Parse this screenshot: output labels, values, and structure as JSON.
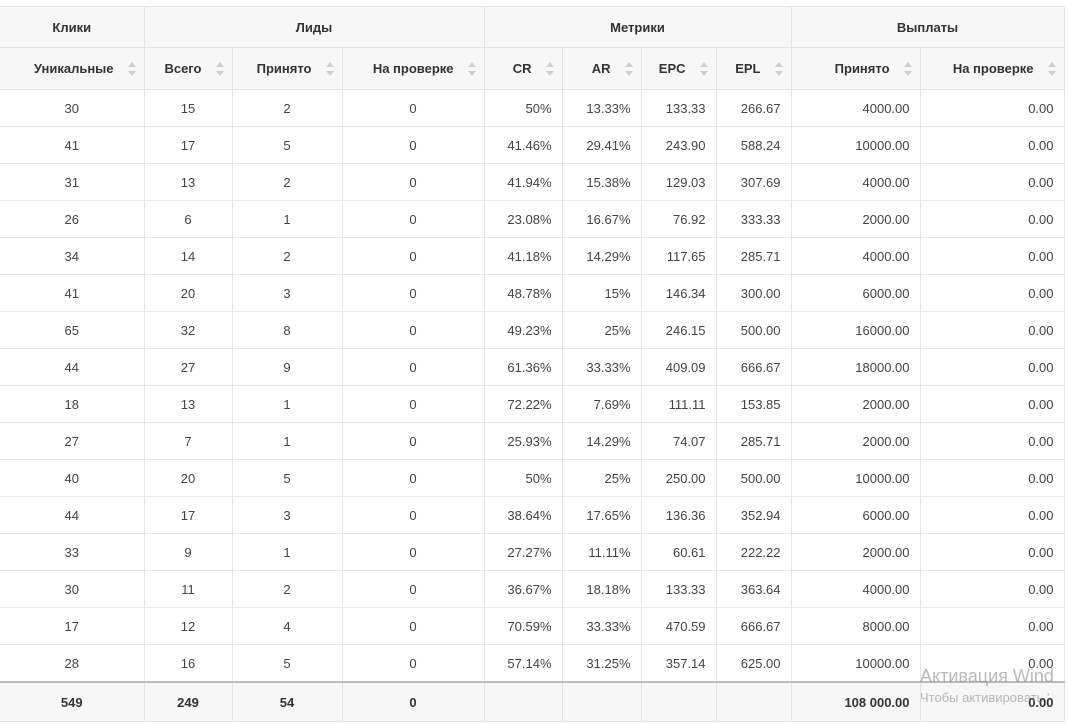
{
  "header_groups": [
    {
      "label": "Клики",
      "span": 1
    },
    {
      "label": "Лиды",
      "span": 3
    },
    {
      "label": "Метрики",
      "span": 4
    },
    {
      "label": "Выплаты",
      "span": 2
    }
  ],
  "columns": [
    {
      "label": "Уникальные",
      "align": "c"
    },
    {
      "label": "Всего",
      "align": "c"
    },
    {
      "label": "Принято",
      "align": "c"
    },
    {
      "label": "На проверке",
      "align": "c"
    },
    {
      "label": "CR",
      "align": "r"
    },
    {
      "label": "AR",
      "align": "r"
    },
    {
      "label": "EPC",
      "align": "r"
    },
    {
      "label": "EPL",
      "align": "r"
    },
    {
      "label": "Принято",
      "align": "r"
    },
    {
      "label": "На проверке",
      "align": "r"
    }
  ],
  "rows": [
    [
      "30",
      "15",
      "2",
      "0",
      "50%",
      "13.33%",
      "133.33",
      "266.67",
      "4000.00",
      "0.00"
    ],
    [
      "41",
      "17",
      "5",
      "0",
      "41.46%",
      "29.41%",
      "243.90",
      "588.24",
      "10000.00",
      "0.00"
    ],
    [
      "31",
      "13",
      "2",
      "0",
      "41.94%",
      "15.38%",
      "129.03",
      "307.69",
      "4000.00",
      "0.00"
    ],
    [
      "26",
      "6",
      "1",
      "0",
      "23.08%",
      "16.67%",
      "76.92",
      "333.33",
      "2000.00",
      "0.00"
    ],
    [
      "34",
      "14",
      "2",
      "0",
      "41.18%",
      "14.29%",
      "117.65",
      "285.71",
      "4000.00",
      "0.00"
    ],
    [
      "41",
      "20",
      "3",
      "0",
      "48.78%",
      "15%",
      "146.34",
      "300.00",
      "6000.00",
      "0.00"
    ],
    [
      "65",
      "32",
      "8",
      "0",
      "49.23%",
      "25%",
      "246.15",
      "500.00",
      "16000.00",
      "0.00"
    ],
    [
      "44",
      "27",
      "9",
      "0",
      "61.36%",
      "33.33%",
      "409.09",
      "666.67",
      "18000.00",
      "0.00"
    ],
    [
      "18",
      "13",
      "1",
      "0",
      "72.22%",
      "7.69%",
      "111.11",
      "153.85",
      "2000.00",
      "0.00"
    ],
    [
      "27",
      "7",
      "1",
      "0",
      "25.93%",
      "14.29%",
      "74.07",
      "285.71",
      "2000.00",
      "0.00"
    ],
    [
      "40",
      "20",
      "5",
      "0",
      "50%",
      "25%",
      "250.00",
      "500.00",
      "10000.00",
      "0.00"
    ],
    [
      "44",
      "17",
      "3",
      "0",
      "38.64%",
      "17.65%",
      "136.36",
      "352.94",
      "6000.00",
      "0.00"
    ],
    [
      "33",
      "9",
      "1",
      "0",
      "27.27%",
      "11.11%",
      "60.61",
      "222.22",
      "2000.00",
      "0.00"
    ],
    [
      "30",
      "11",
      "2",
      "0",
      "36.67%",
      "18.18%",
      "133.33",
      "363.64",
      "4000.00",
      "0.00"
    ],
    [
      "17",
      "12",
      "4",
      "0",
      "70.59%",
      "33.33%",
      "470.59",
      "666.67",
      "8000.00",
      "0.00"
    ],
    [
      "28",
      "16",
      "5",
      "0",
      "57.14%",
      "31.25%",
      "357.14",
      "625.00",
      "10000.00",
      "0.00"
    ]
  ],
  "totals": [
    "549",
    "249",
    "54",
    "0",
    "",
    "",
    "",
    "",
    "108 000.00",
    "0.00"
  ],
  "watermark": {
    "title": "Активация Wind",
    "subtitle": "Чтобы активировать '"
  }
}
